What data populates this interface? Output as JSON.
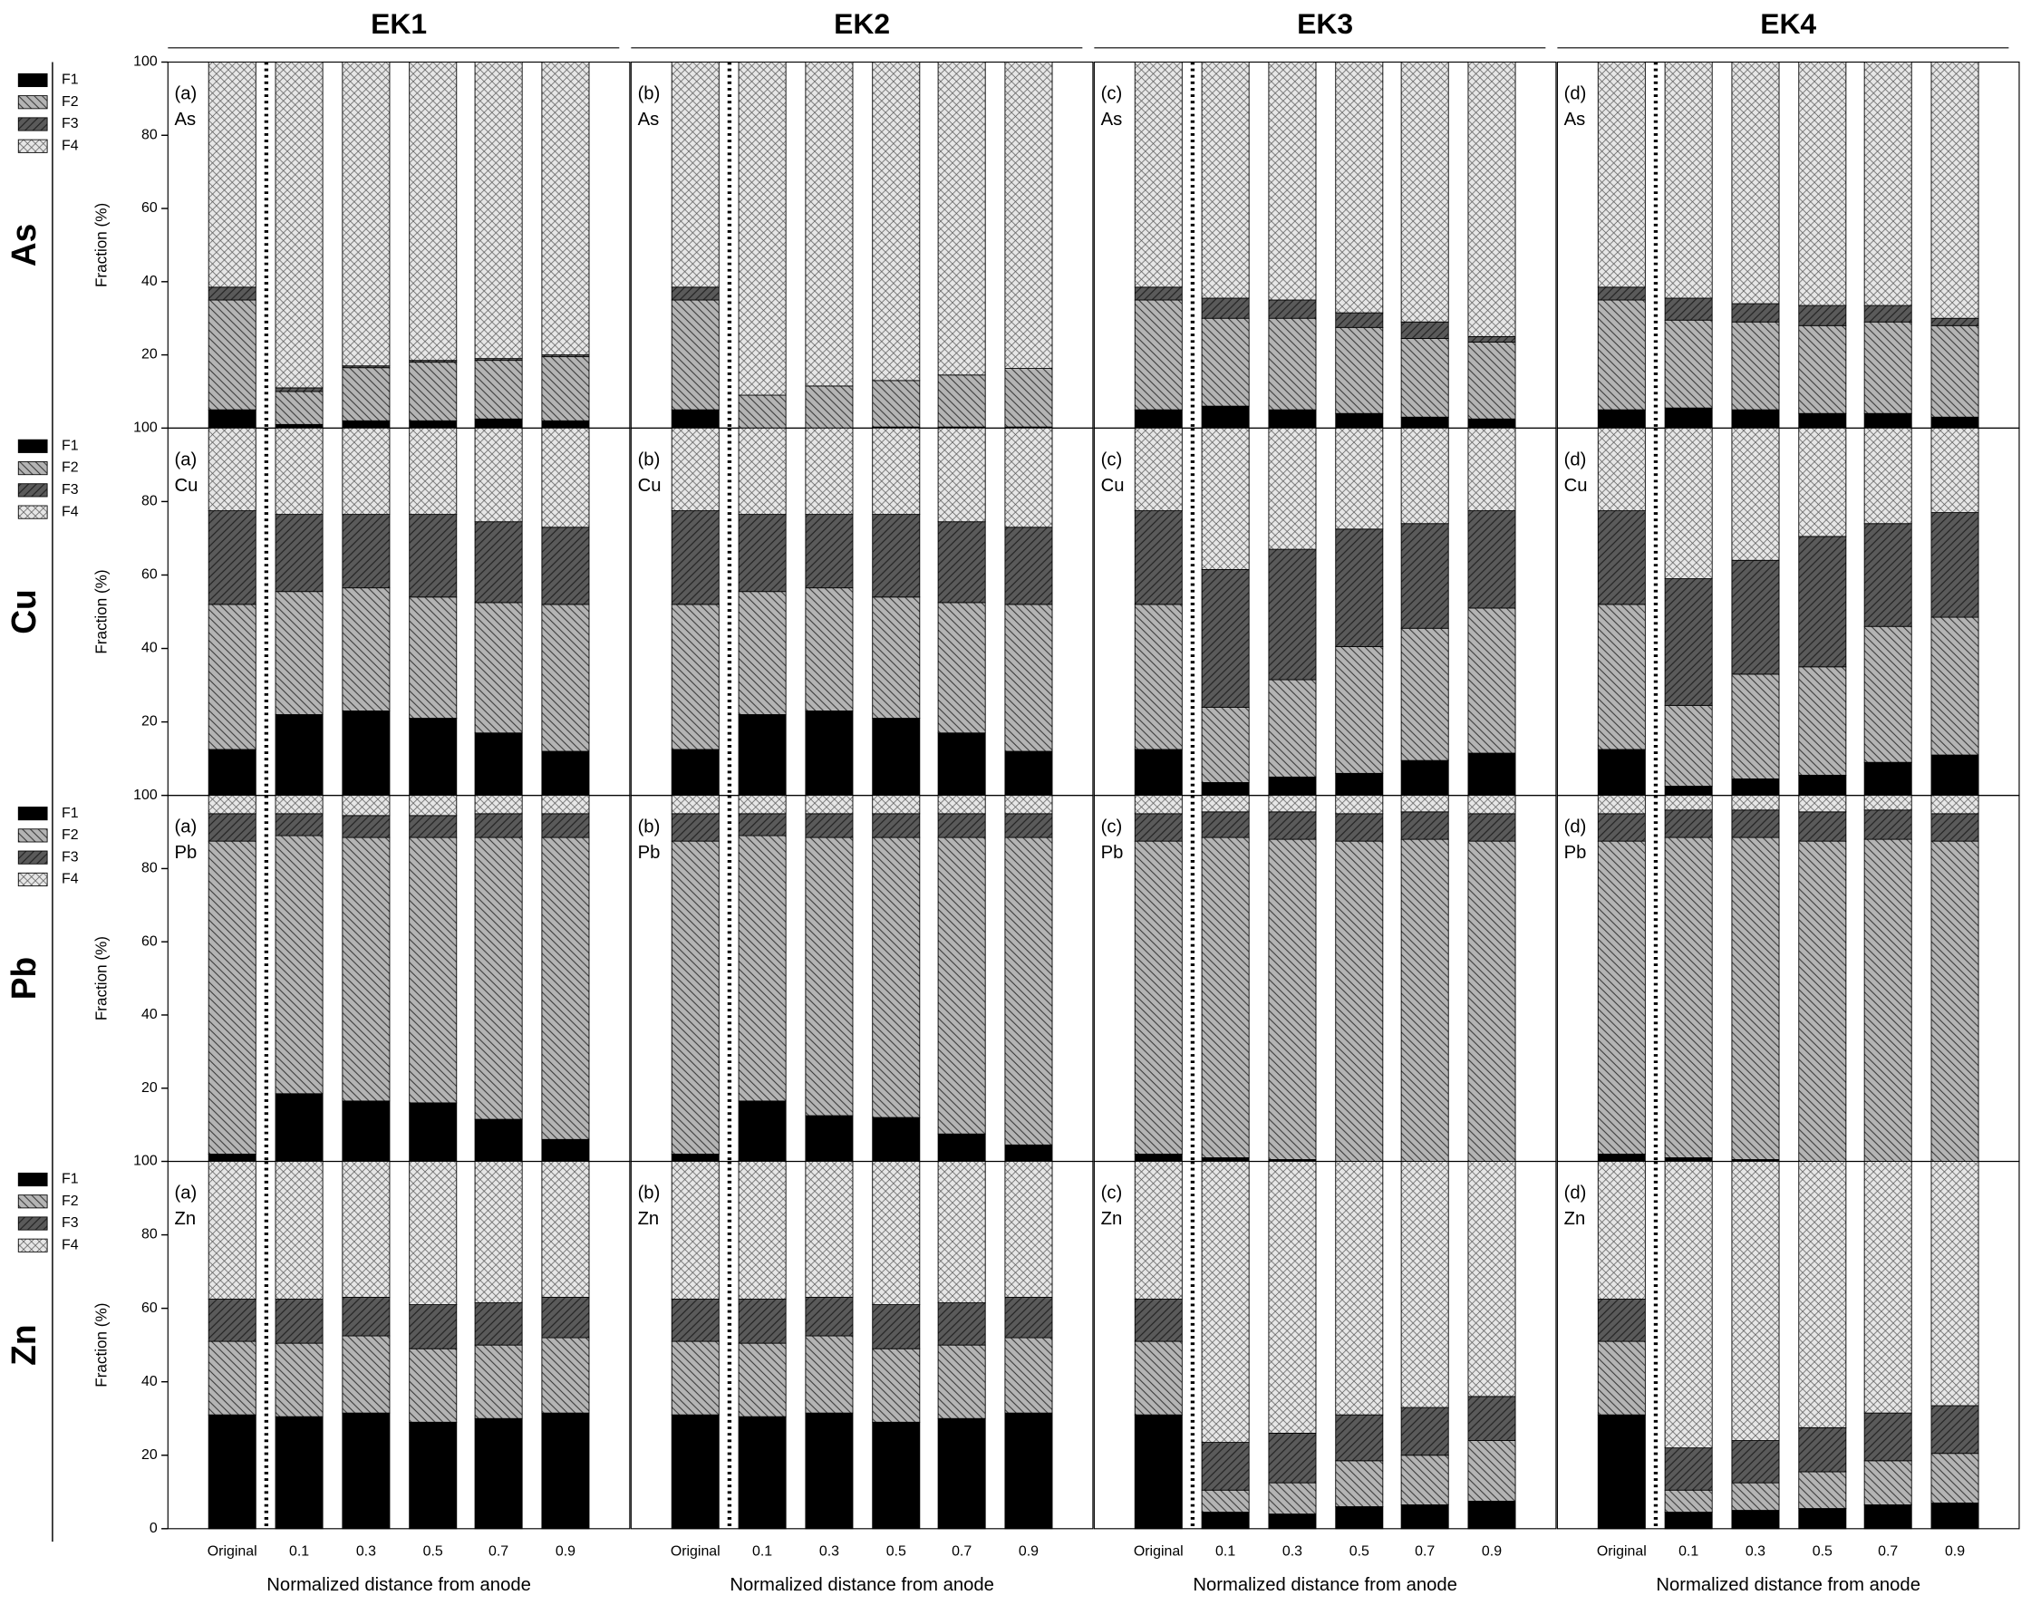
{
  "columns": [
    "EK1",
    "EK2",
    "EK3",
    "EK4"
  ],
  "categories": [
    "Original",
    "0.1",
    "0.3",
    "0.5",
    "0.7",
    "0.9"
  ],
  "x_label": "Normalized distance from anode",
  "chart_data": [
    {
      "type": "bar",
      "stacked": true,
      "metal": "As",
      "panels": [
        "(a)",
        "(b)",
        "(c)",
        "(d)"
      ],
      "y_label": "Fraction (%)",
      "ylim": [
        0,
        100
      ],
      "yticks": [
        20,
        40,
        60,
        80,
        100
      ],
      "series": [
        {
          "name": "F1",
          "color": "#000000",
          "values": [
            [
              5,
              1,
              2,
              2,
              2.5,
              2
            ],
            [
              5,
              0,
              0,
              0.3,
              0.3,
              0.3
            ],
            [
              5,
              6,
              5,
              4,
              3,
              2.5
            ],
            [
              5,
              5.5,
              5,
              4,
              4,
              3
            ]
          ]
        },
        {
          "name": "F2",
          "color": "#b4b4b4",
          "values": [
            [
              30,
              9,
              14.5,
              16,
              16,
              17.5
            ],
            [
              30,
              9,
              11.5,
              12.7,
              14.2,
              16
            ],
            [
              30,
              24,
              25,
              23.5,
              21.5,
              21
            ],
            [
              30,
              24,
              24,
              24,
              25,
              25
            ]
          ]
        },
        {
          "name": "F3",
          "color": "#5a5a5a",
          "values": [
            [
              3.5,
              1,
              0.5,
              0.5,
              0.5,
              0.5
            ],
            [
              3.5,
              0,
              0,
              0,
              0,
              0
            ],
            [
              3.5,
              5.5,
              5,
              4,
              4.5,
              1.5
            ],
            [
              3.5,
              6,
              5,
              5.5,
              4.5,
              2
            ]
          ]
        },
        {
          "name": "F4",
          "color": "#e6e6e6",
          "values": [
            [
              61.5,
              89,
              83,
              81.5,
              81,
              80
            ],
            [
              61.5,
              91,
              88.5,
              87,
              85.5,
              83.7
            ],
            [
              61.5,
              64.5,
              65,
              68.5,
              71,
              75
            ],
            [
              61.5,
              64.5,
              66,
              66.5,
              66.5,
              70
            ]
          ]
        }
      ]
    },
    {
      "type": "bar",
      "stacked": true,
      "metal": "Cu",
      "panels": [
        "(a)",
        "(b)",
        "(c)",
        "(d)"
      ],
      "y_label": "Fraction (%)",
      "ylim": [
        0,
        100
      ],
      "yticks": [
        20,
        40,
        60,
        80,
        100
      ],
      "series": [
        {
          "name": "F1",
          "color": "#000000",
          "values": [
            [
              12.5,
              22,
              23,
              21,
              17,
              12
            ],
            [
              12.5,
              22,
              23,
              21,
              17,
              12
            ],
            [
              12.5,
              3.5,
              5,
              6,
              9.5,
              11.5
            ],
            [
              12.5,
              2.5,
              4.5,
              5.5,
              9,
              11
            ]
          ]
        },
        {
          "name": "F2",
          "color": "#b4b4b4",
          "values": [
            [
              39.5,
              33.5,
              33.5,
              33,
              35.5,
              40
            ],
            [
              39.5,
              33.5,
              33.5,
              33,
              35.5,
              40
            ],
            [
              39.5,
              20.5,
              26.5,
              34.5,
              36,
              39.5
            ],
            [
              39.5,
              22,
              28.5,
              29.5,
              37,
              37.5
            ]
          ]
        },
        {
          "name": "F3",
          "color": "#5a5a5a",
          "values": [
            [
              25.5,
              21,
              20,
              22.5,
              22,
              21
            ],
            [
              25.5,
              21,
              20,
              22.5,
              22,
              21
            ],
            [
              25.5,
              37.5,
              35.5,
              32,
              28.5,
              26.5
            ],
            [
              25.5,
              34.5,
              31,
              35.5,
              28,
              28.5
            ]
          ]
        },
        {
          "name": "F4",
          "color": "#e6e6e6",
          "values": [
            [
              22.5,
              23.5,
              23.5,
              23.5,
              25.5,
              27
            ],
            [
              22.5,
              23.5,
              23.5,
              23.5,
              25.5,
              27
            ],
            [
              22.5,
              38.5,
              33,
              27.5,
              26,
              22.5
            ],
            [
              22.5,
              41,
              36,
              29.5,
              26,
              23
            ]
          ]
        }
      ]
    },
    {
      "type": "bar",
      "stacked": true,
      "metal": "Pb",
      "panels": [
        "(a)",
        "(b)",
        "(c)",
        "(d)"
      ],
      "y_label": "Fraction (%)",
      "ylim": [
        0,
        100
      ],
      "yticks": [
        20,
        40,
        60,
        80,
        100
      ],
      "series": [
        {
          "name": "F1",
          "color": "#000000",
          "values": [
            [
              2,
              18.5,
              16.5,
              16,
              11.5,
              6
            ],
            [
              2,
              16.5,
              12.5,
              12,
              7.5,
              4.5
            ],
            [
              2,
              1,
              0.5,
              0,
              0,
              0
            ],
            [
              2,
              1,
              0.5,
              0,
              0,
              0
            ]
          ]
        },
        {
          "name": "F2",
          "color": "#b4b4b4",
          "values": [
            [
              85.5,
              70.5,
              72,
              72.5,
              77,
              82.5
            ],
            [
              85.5,
              72.5,
              76,
              76.5,
              81,
              84
            ],
            [
              85.5,
              87.5,
              87.5,
              87.5,
              88,
              87.5
            ],
            [
              85.5,
              87.5,
              88,
              87.5,
              88,
              87.5
            ]
          ]
        },
        {
          "name": "F3",
          "color": "#5a5a5a",
          "values": [
            [
              7.5,
              6,
              6,
              6,
              6.5,
              6.5
            ],
            [
              7.5,
              6,
              6.5,
              6.5,
              6.5,
              6.5
            ],
            [
              7.5,
              7,
              7.5,
              7.5,
              7.5,
              7.5
            ],
            [
              7.5,
              7.5,
              7.5,
              8,
              8,
              7.5
            ]
          ]
        },
        {
          "name": "F4",
          "color": "#e6e6e6",
          "values": [
            [
              5,
              5,
              5.5,
              5.5,
              5,
              5
            ],
            [
              5,
              5,
              5,
              5,
              5,
              5
            ],
            [
              5,
              4.5,
              4.5,
              5,
              4.5,
              5
            ],
            [
              5,
              4,
              4,
              4.5,
              4,
              5
            ]
          ]
        }
      ]
    },
    {
      "type": "bar",
      "stacked": true,
      "metal": "Zn",
      "panels": [
        "(a)",
        "(b)",
        "(c)",
        "(d)"
      ],
      "y_label": "Fraction (%)",
      "ylim": [
        0,
        100
      ],
      "yticks": [
        0,
        20,
        40,
        60,
        80,
        100
      ],
      "series": [
        {
          "name": "F1",
          "color": "#000000",
          "values": [
            [
              31,
              30.5,
              31.5,
              29,
              30,
              31.5
            ],
            [
              31,
              30.5,
              31.5,
              29,
              30,
              31.5
            ],
            [
              31,
              4.5,
              4,
              6,
              6.5,
              7.5
            ],
            [
              31,
              4.5,
              5,
              5.5,
              6.5,
              7
            ]
          ]
        },
        {
          "name": "F2",
          "color": "#b4b4b4",
          "values": [
            [
              20,
              20,
              21,
              20,
              20,
              20.5
            ],
            [
              20,
              20,
              21,
              20,
              20,
              20.5
            ],
            [
              20,
              6,
              8.5,
              12.5,
              13.5,
              16.5
            ],
            [
              20,
              6,
              7.5,
              10,
              12,
              13.5
            ]
          ]
        },
        {
          "name": "F3",
          "color": "#5a5a5a",
          "values": [
            [
              11.5,
              12,
              10.5,
              12,
              11.5,
              11
            ],
            [
              11.5,
              12,
              10.5,
              12,
              11.5,
              11
            ],
            [
              11.5,
              13,
              13.5,
              12.5,
              13,
              12
            ],
            [
              11.5,
              11.5,
              11.5,
              12,
              13,
              13
            ]
          ]
        },
        {
          "name": "F4",
          "color": "#e6e6e6",
          "values": [
            [
              37.5,
              37.5,
              37,
              39,
              38.5,
              37
            ],
            [
              37.5,
              37.5,
              37,
              39,
              38.5,
              37
            ],
            [
              37.5,
              76.5,
              74,
              69,
              67,
              64
            ],
            [
              37.5,
              78,
              76,
              72.5,
              68.5,
              66.5
            ]
          ]
        }
      ]
    }
  ]
}
